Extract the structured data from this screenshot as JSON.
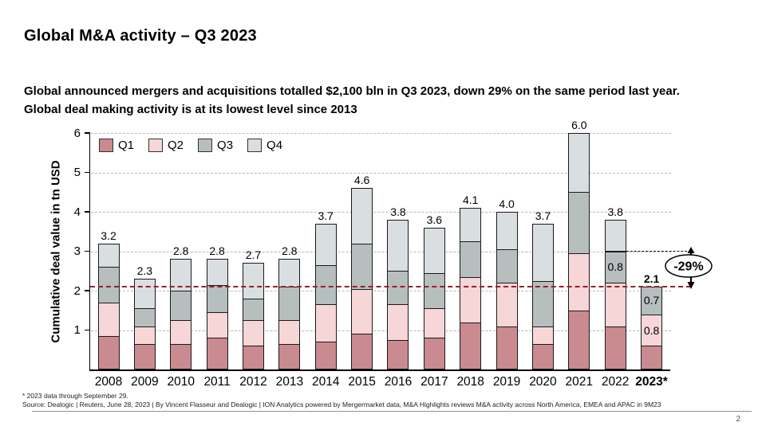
{
  "slide": {
    "title": "Global M&A activity – Q3 2023",
    "subtitle_line1": "Global announced mergers and acquisitions totalled $2,100 bln in Q3 2023, down 29% on the same period last year.",
    "subtitle_line2": "Global deal making activity is at its lowest level since 2013",
    "footnote": "* 2023 data through September 29.",
    "source": "Source: Dealogic | Reuters, June 28, 2023 | By Vincent Flasseur and Dealogic | ION Analytics powered by Mergermarket data, M&A Highlights reviews M&A activity across North America, EMEA and APAC in 9M23",
    "page_number": "2"
  },
  "chart_data": {
    "type": "bar",
    "stacked": true,
    "title": "",
    "xlabel": "",
    "ylabel": "Cumulative deal value in tn USD",
    "ylim": [
      0,
      6
    ],
    "yticks": [
      1,
      2,
      3,
      4,
      5,
      6
    ],
    "grid": "horizontal-dashed",
    "legend_position": "top-left-inside",
    "categories": [
      "2008",
      "2009",
      "2010",
      "2011",
      "2012",
      "2013",
      "2014",
      "2015",
      "2016",
      "2017",
      "2018",
      "2019",
      "2020",
      "2021",
      "2022",
      "2023*"
    ],
    "series": [
      {
        "name": "Q1",
        "color": "#c98a90",
        "values": [
          0.85,
          0.65,
          0.65,
          0.8,
          0.6,
          0.65,
          0.7,
          0.9,
          0.75,
          0.8,
          1.2,
          1.1,
          0.65,
          1.5,
          1.1,
          0.6
        ]
      },
      {
        "name": "Q2",
        "color": "#f7d6d8",
        "values": [
          0.85,
          0.45,
          0.6,
          0.65,
          0.65,
          0.6,
          0.95,
          1.15,
          0.9,
          0.75,
          1.15,
          1.1,
          0.45,
          1.45,
          1.1,
          0.8
        ]
      },
      {
        "name": "Q3",
        "color": "#b7bfbe",
        "values": [
          0.9,
          0.45,
          0.75,
          0.7,
          0.55,
          0.85,
          1.0,
          1.15,
          0.85,
          0.9,
          0.9,
          0.85,
          1.15,
          1.55,
          0.8,
          0.7
        ]
      },
      {
        "name": "Q4",
        "color": "#d9dfe1",
        "values": [
          0.6,
          0.75,
          0.8,
          0.65,
          0.9,
          0.7,
          1.05,
          1.4,
          1.3,
          1.15,
          0.85,
          0.95,
          1.45,
          1.5,
          0.8,
          0.0
        ]
      }
    ],
    "total_labels": [
      "3.2",
      "2.3",
      "2.8",
      "2.8",
      "2.7",
      "2.8",
      "3.7",
      "4.6",
      "3.8",
      "3.6",
      "4.1",
      "4.0",
      "3.7",
      "6.0",
      "3.8",
      "2.1"
    ],
    "bold_categories": [
      "2023*"
    ],
    "inside_labels": [
      {
        "category": "2022",
        "series": "Q3",
        "text": "0.8"
      },
      {
        "category": "2023*",
        "series": "Q3",
        "text": "0.7"
      },
      {
        "category": "2023*",
        "series": "Q2",
        "text": "0.8"
      }
    ],
    "reference_line": {
      "value": 2.1,
      "color": "#9e1e2d",
      "style": "dashed"
    },
    "annotations": {
      "pct_label": "-29%",
      "comparison": {
        "from_value": 3.0,
        "to_value": 2.1
      }
    }
  },
  "colors": {
    "axis": "#000000",
    "grid": "#b8b8b8",
    "bar_border": "#1a1a1a",
    "reference_line": "#9e1e2d"
  }
}
